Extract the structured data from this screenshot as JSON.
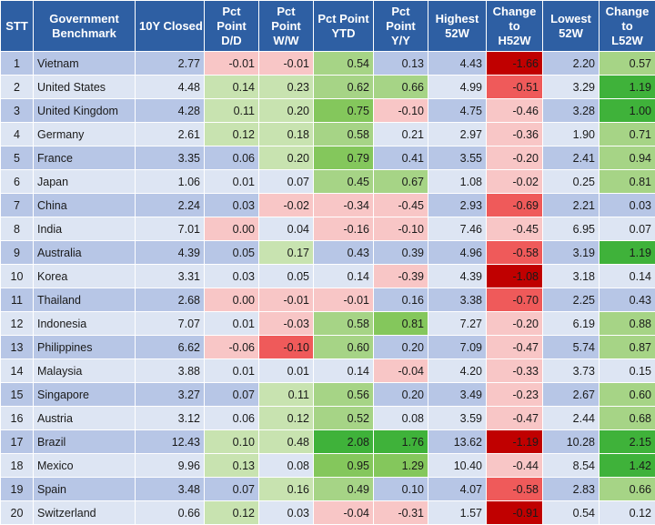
{
  "headers": [
    "STT",
    "Government\nBenchmark",
    "10Y Closed",
    "Pct\nPoint\nD/D",
    "Pct\nPoint\nW/W",
    "Pct Point\nYTD",
    "Pct\nPoint\nY/Y",
    "Highest\n52W",
    "Change\nto\nH52W",
    "Lowest\n52W",
    "Change\nto\nL52W"
  ],
  "colors": {
    "header_bg": "#2e5fa3",
    "row_odd_bg": "#b7c6e6",
    "row_even_bg": "#dde5f3",
    "pos_light": "#c8e3b0",
    "pos_mid": "#a6d486",
    "pos_strong": "#84c75c",
    "pos_max": "#3fb23a",
    "neg_light": "#f8c6c6",
    "neg_mid": "#f49a9a",
    "neg_strong": "#ef5a5a",
    "neg_max": "#c00000"
  },
  "rows": [
    {
      "stt": "1",
      "name": "Vietnam",
      "closed": "2.77",
      "dd": "-0.01",
      "ww": "-0.01",
      "ytd": "0.54",
      "yy": "0.13",
      "h52": "4.43",
      "ch52": "-1.66",
      "l52": "2.20",
      "cl52": "0.57"
    },
    {
      "stt": "2",
      "name": "United States",
      "closed": "4.48",
      "dd": "0.14",
      "ww": "0.23",
      "ytd": "0.62",
      "yy": "0.66",
      "h52": "4.99",
      "ch52": "-0.51",
      "l52": "3.29",
      "cl52": "1.19"
    },
    {
      "stt": "3",
      "name": "United Kingdom",
      "closed": "4.28",
      "dd": "0.11",
      "ww": "0.20",
      "ytd": "0.75",
      "yy": "-0.10",
      "h52": "4.75",
      "ch52": "-0.46",
      "l52": "3.28",
      "cl52": "1.00"
    },
    {
      "stt": "4",
      "name": "Germany",
      "closed": "2.61",
      "dd": "0.12",
      "ww": "0.18",
      "ytd": "0.58",
      "yy": "0.21",
      "h52": "2.97",
      "ch52": "-0.36",
      "l52": "1.90",
      "cl52": "0.71"
    },
    {
      "stt": "5",
      "name": "France",
      "closed": "3.35",
      "dd": "0.06",
      "ww": "0.20",
      "ytd": "0.79",
      "yy": "0.41",
      "h52": "3.55",
      "ch52": "-0.20",
      "l52": "2.41",
      "cl52": "0.94"
    },
    {
      "stt": "6",
      "name": "Japan",
      "closed": "1.06",
      "dd": "0.01",
      "ww": "0.07",
      "ytd": "0.45",
      "yy": "0.67",
      "h52": "1.08",
      "ch52": "-0.02",
      "l52": "0.25",
      "cl52": "0.81"
    },
    {
      "stt": "7",
      "name": "China",
      "closed": "2.24",
      "dd": "0.03",
      "ww": "-0.02",
      "ytd": "-0.34",
      "yy": "-0.45",
      "h52": "2.93",
      "ch52": "-0.69",
      "l52": "2.21",
      "cl52": "0.03"
    },
    {
      "stt": "8",
      "name": "India",
      "closed": "7.01",
      "dd": "0.00",
      "ww": "0.04",
      "ytd": "-0.16",
      "yy": "-0.10",
      "h52": "7.46",
      "ch52": "-0.45",
      "l52": "6.95",
      "cl52": "0.07"
    },
    {
      "stt": "9",
      "name": "Australia",
      "closed": "4.39",
      "dd": "0.05",
      "ww": "0.17",
      "ytd": "0.43",
      "yy": "0.39",
      "h52": "4.96",
      "ch52": "-0.58",
      "l52": "3.19",
      "cl52": "1.19"
    },
    {
      "stt": "10",
      "name": "Korea",
      "closed": "3.31",
      "dd": "0.03",
      "ww": "0.05",
      "ytd": "0.14",
      "yy": "-0.39",
      "h52": "4.39",
      "ch52": "-1.08",
      "l52": "3.18",
      "cl52": "0.14"
    },
    {
      "stt": "11",
      "name": "Thailand",
      "closed": "2.68",
      "dd": "0.00",
      "ww": "-0.01",
      "ytd": "-0.01",
      "yy": "0.16",
      "h52": "3.38",
      "ch52": "-0.70",
      "l52": "2.25",
      "cl52": "0.43"
    },
    {
      "stt": "12",
      "name": "Indonesia",
      "closed": "7.07",
      "dd": "0.01",
      "ww": "-0.03",
      "ytd": "0.58",
      "yy": "0.81",
      "h52": "7.27",
      "ch52": "-0.20",
      "l52": "6.19",
      "cl52": "0.88"
    },
    {
      "stt": "13",
      "name": "Philippines",
      "closed": "6.62",
      "dd": "-0.06",
      "ww": "-0.10",
      "ytd": "0.60",
      "yy": "0.20",
      "h52": "7.09",
      "ch52": "-0.47",
      "l52": "5.74",
      "cl52": "0.87"
    },
    {
      "stt": "14",
      "name": "Malaysia",
      "closed": "3.88",
      "dd": "0.01",
      "ww": "0.01",
      "ytd": "0.14",
      "yy": "-0.04",
      "h52": "4.20",
      "ch52": "-0.33",
      "l52": "3.73",
      "cl52": "0.15"
    },
    {
      "stt": "15",
      "name": "Singapore",
      "closed": "3.27",
      "dd": "0.07",
      "ww": "0.11",
      "ytd": "0.56",
      "yy": "0.20",
      "h52": "3.49",
      "ch52": "-0.23",
      "l52": "2.67",
      "cl52": "0.60"
    },
    {
      "stt": "16",
      "name": "Austria",
      "closed": "3.12",
      "dd": "0.06",
      "ww": "0.12",
      "ytd": "0.52",
      "yy": "0.08",
      "h52": "3.59",
      "ch52": "-0.47",
      "l52": "2.44",
      "cl52": "0.68"
    },
    {
      "stt": "17",
      "name": "Brazil",
      "closed": "12.43",
      "dd": "0.10",
      "ww": "0.48",
      "ytd": "2.08",
      "yy": "1.76",
      "h52": "13.62",
      "ch52": "-1.19",
      "l52": "10.28",
      "cl52": "2.15"
    },
    {
      "stt": "18",
      "name": "Mexico",
      "closed": "9.96",
      "dd": "0.13",
      "ww": "0.08",
      "ytd": "0.95",
      "yy": "1.29",
      "h52": "10.40",
      "ch52": "-0.44",
      "l52": "8.54",
      "cl52": "1.42"
    },
    {
      "stt": "19",
      "name": "Spain",
      "closed": "3.48",
      "dd": "0.07",
      "ww": "0.16",
      "ytd": "0.49",
      "yy": "0.10",
      "h52": "4.07",
      "ch52": "-0.58",
      "l52": "2.83",
      "cl52": "0.66"
    },
    {
      "stt": "20",
      "name": "Switzerland",
      "closed": "0.66",
      "dd": "0.12",
      "ww": "0.03",
      "ytd": "-0.04",
      "yy": "-0.31",
      "h52": "1.57",
      "ch52": "-0.91",
      "l52": "0.54",
      "cl52": "0.12"
    }
  ]
}
